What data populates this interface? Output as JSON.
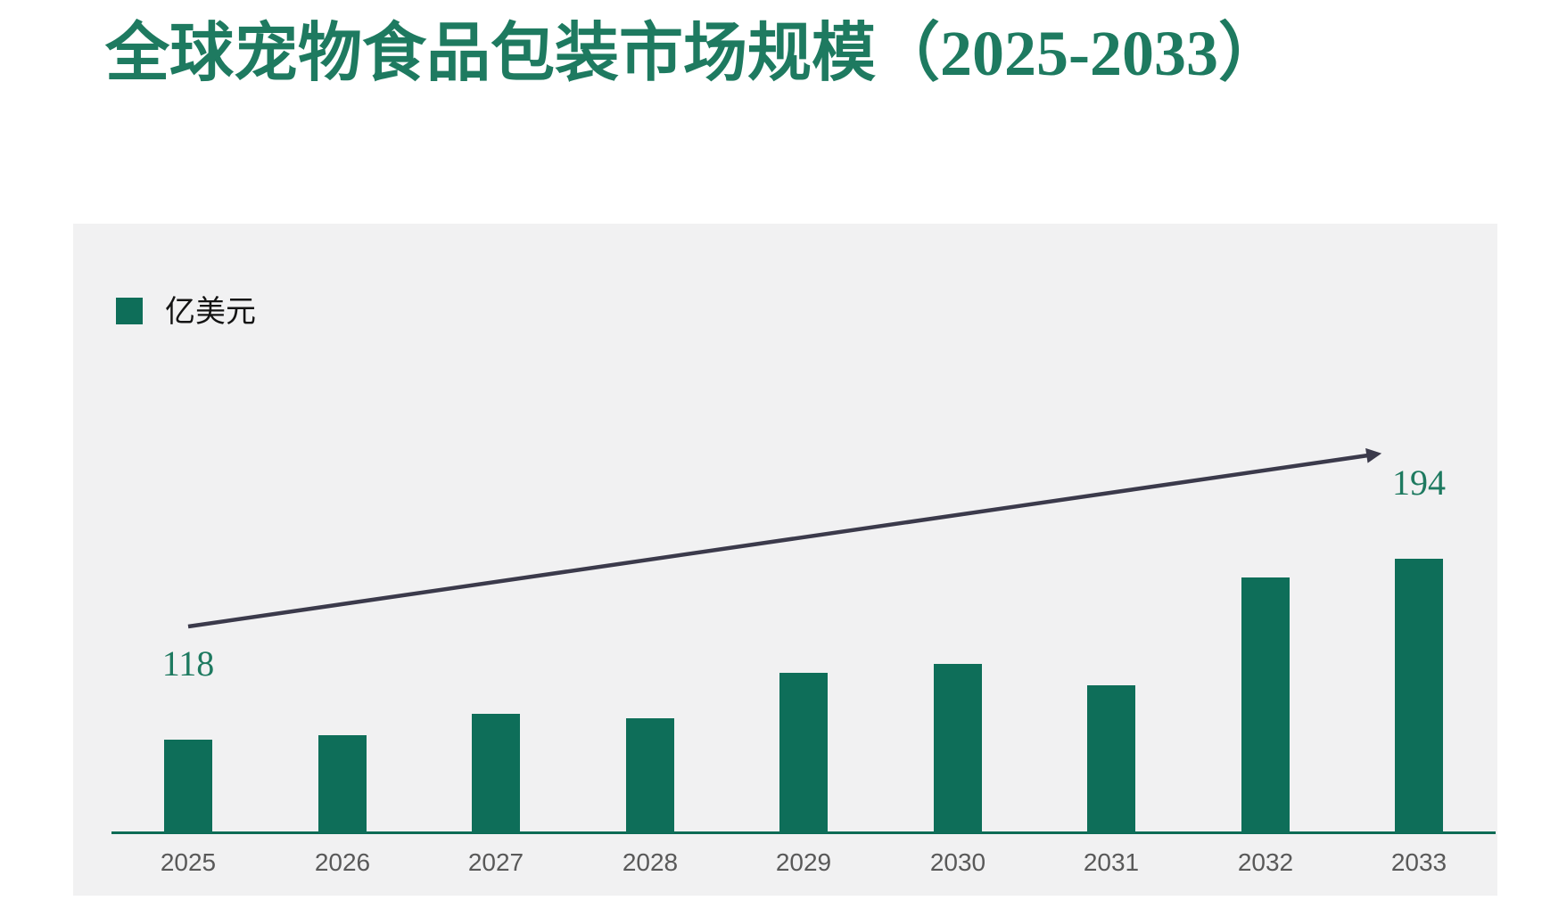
{
  "title": {
    "text": "全球宠物食品包装市场规模（2025-2033）"
  },
  "legend": {
    "label": "亿美元"
  },
  "chart_data": {
    "type": "bar",
    "title": "全球宠物食品包装市场规模（2025-2033）",
    "unit": "亿美元",
    "legend_entries": [
      "亿美元"
    ],
    "legend_position": "top-left",
    "categories": [
      "2025",
      "2026",
      "2027",
      "2028",
      "2029",
      "2030",
      "2031",
      "2032",
      "2033"
    ],
    "values": [
      118,
      120,
      129,
      127,
      146,
      150,
      141,
      186,
      194
    ],
    "labeled_values": {
      "2025": 118,
      "2033": 194
    },
    "xlabel": "",
    "ylabel": "",
    "value_axis_visible": false,
    "grid": false,
    "ylim": [
      79,
      334
    ],
    "annotations": [
      {
        "type": "trend-arrow",
        "direction": "up-right"
      }
    ]
  },
  "colors": {
    "bar": "#0E6E59",
    "title": "#1E7A60",
    "value_label": "#1E7A60",
    "axis_line": "#0C6B55",
    "tick_label": "#595959",
    "arrow": "#3B3A4B",
    "panel_bg": "#F1F1F2",
    "page_bg": "#FFFFFF",
    "legend_text": "#141414"
  }
}
